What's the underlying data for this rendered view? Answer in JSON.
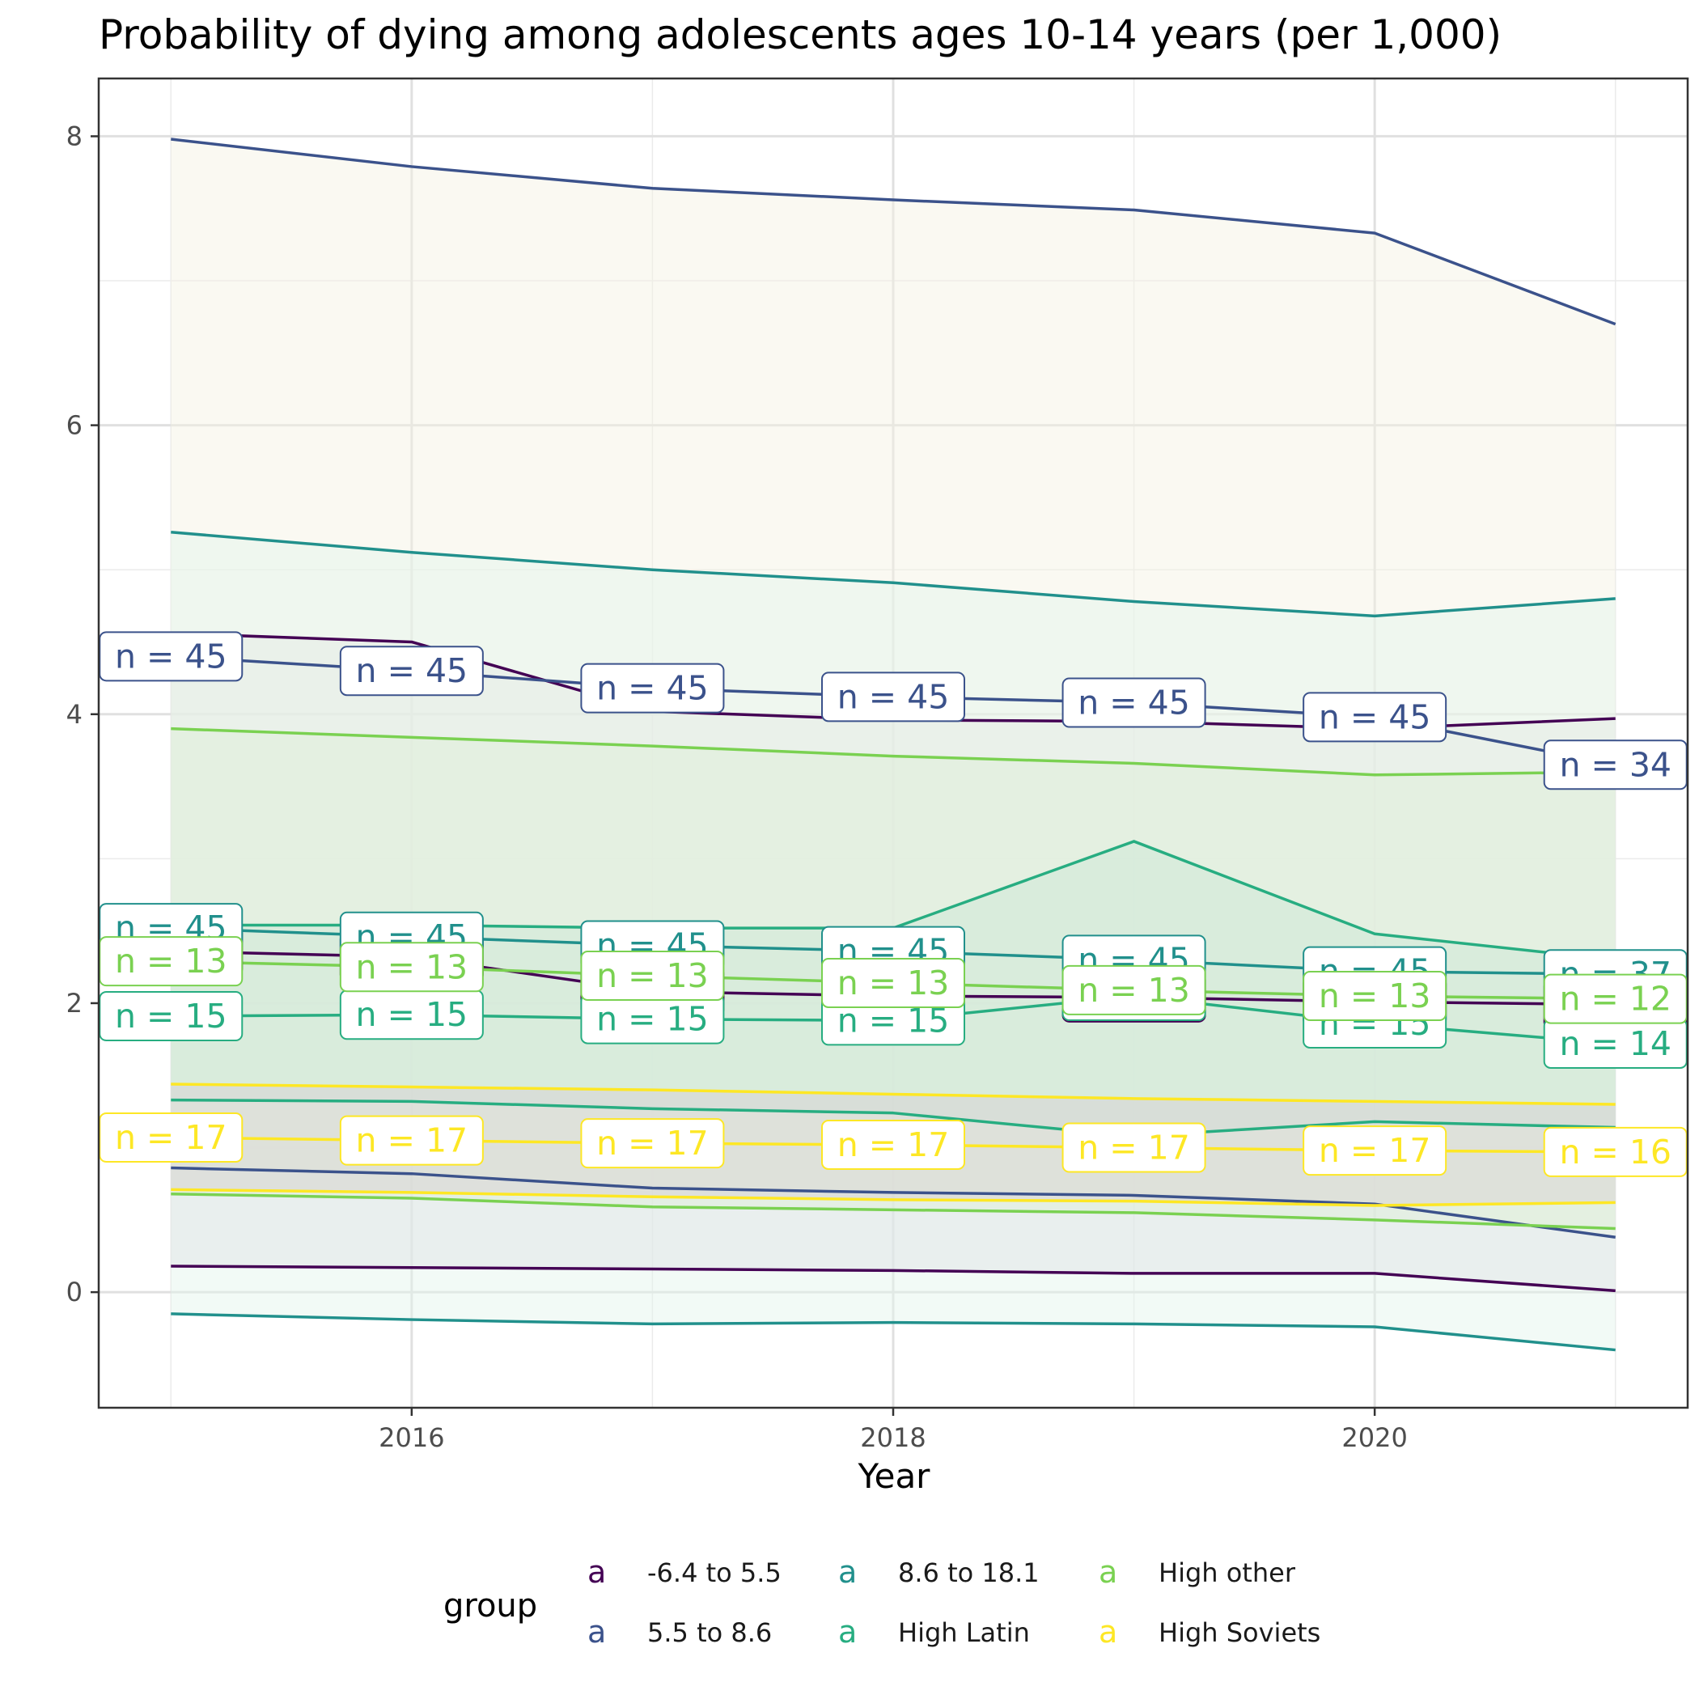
{
  "chart_data": {
    "type": "line",
    "title": "Probability of dying among adolescents ages 10-14 years (per 1,000)",
    "xlabel": "Year",
    "ylabel": "",
    "xlim": [
      2014.7,
      2021.3
    ],
    "ylim": [
      -0.8,
      8.4
    ],
    "xticks": [
      2016,
      2018,
      2020
    ],
    "yticks": [
      0,
      2,
      4,
      6,
      8
    ],
    "grid": true,
    "legend_title": "group",
    "legend_position": "bottom",
    "x": [
      2015,
      2016,
      2017,
      2018,
      2019,
      2020,
      2021
    ],
    "series": [
      {
        "name": "-6.4 to 5.5",
        "color": "#440154",
        "mean": [
          2.36,
          2.32,
          2.08,
          2.05,
          2.04,
          2.01,
          1.99
        ],
        "upper": [
          4.56,
          4.5,
          4.02,
          3.96,
          3.95,
          3.9,
          3.97
        ],
        "lower": [
          0.18,
          0.17,
          0.16,
          0.15,
          0.13,
          0.13,
          0.01
        ],
        "n": [
          45,
          45,
          45,
          45,
          45,
          45,
          45
        ],
        "fill": "#DCD2DF"
      },
      {
        "name": "5.5 to 8.6",
        "color": "#3B528B",
        "mean": [
          4.4,
          4.3,
          4.18,
          4.12,
          4.08,
          3.98,
          3.65
        ],
        "upper": [
          7.98,
          7.79,
          7.64,
          7.56,
          7.49,
          7.33,
          6.7
        ],
        "lower": [
          0.86,
          0.82,
          0.72,
          0.69,
          0.67,
          0.61,
          0.38
        ],
        "n": [
          45,
          45,
          45,
          45,
          45,
          45,
          34
        ],
        "fill": "#F5F2E2"
      },
      {
        "name": "8.6 to 18.1",
        "color": "#21908C",
        "mean": [
          2.52,
          2.46,
          2.4,
          2.36,
          2.3,
          2.22,
          2.2
        ],
        "upper": [
          5.26,
          5.12,
          5.0,
          4.91,
          4.78,
          4.68,
          4.8
        ],
        "lower": [
          -0.15,
          -0.19,
          -0.22,
          -0.21,
          -0.22,
          -0.24,
          -0.4
        ],
        "n": [
          45,
          45,
          45,
          45,
          45,
          45,
          37
        ],
        "fill": "#E3F5EC"
      },
      {
        "name": "High Latin",
        "color": "#27AD81",
        "mean": [
          1.91,
          1.92,
          1.89,
          1.88,
          2.05,
          1.86,
          1.72
        ],
        "upper": [
          2.54,
          2.54,
          2.52,
          2.52,
          3.12,
          2.48,
          2.3
        ],
        "lower": [
          1.33,
          1.32,
          1.27,
          1.24,
          1.08,
          1.18,
          1.14
        ],
        "n": [
          15,
          15,
          15,
          15,
          15,
          15,
          14
        ],
        "fill": "#BCE0D7"
      },
      {
        "name": "High other",
        "color": "#7AD151",
        "mean": [
          2.29,
          2.25,
          2.19,
          2.14,
          2.09,
          2.05,
          2.03
        ],
        "upper": [
          3.9,
          3.84,
          3.78,
          3.71,
          3.66,
          3.58,
          3.6
        ],
        "lower": [
          0.68,
          0.65,
          0.59,
          0.57,
          0.55,
          0.5,
          0.44
        ],
        "n": [
          13,
          13,
          13,
          13,
          13,
          13,
          12
        ],
        "fill": "#DEEFD6"
      },
      {
        "name": "High Soviets",
        "color": "#FDE725",
        "mean": [
          1.07,
          1.05,
          1.03,
          1.02,
          1.0,
          0.98,
          0.97
        ],
        "upper": [
          1.44,
          1.42,
          1.4,
          1.37,
          1.34,
          1.32,
          1.3
        ],
        "lower": [
          0.71,
          0.69,
          0.66,
          0.64,
          0.63,
          0.6,
          0.62
        ],
        "n": [
          17,
          17,
          17,
          17,
          17,
          17,
          16
        ],
        "fill": "#D8CFD2"
      }
    ]
  }
}
